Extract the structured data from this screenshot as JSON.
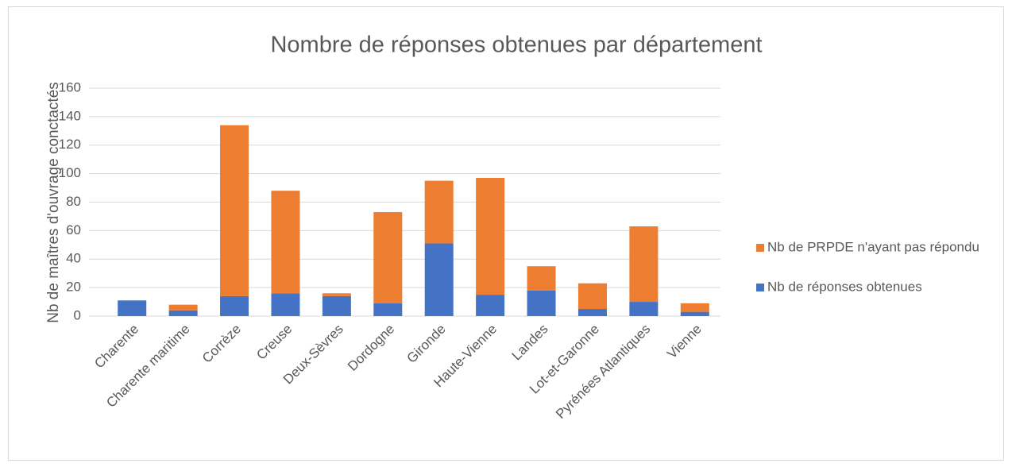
{
  "chart_data": {
    "type": "stacked_bar",
    "title": "Nombre de réponses obtenues par département",
    "y_label": "Nb de maîtres d'ouvrage conctactés",
    "categories": [
      "Charente",
      "Charente maritime",
      "Corrèze",
      "Creuse",
      "Deux-Sèvres",
      "Dordogne",
      "Gironde",
      "Haute-Vienne",
      "Landes",
      "Lot-et-Garonne",
      "Pyrénées Atlantiques",
      "Vienne"
    ],
    "series": [
      {
        "name": "Nb de réponses obtenues",
        "color": "#4472c4",
        "values": [
          11,
          4,
          14,
          16,
          14,
          9,
          51,
          15,
          18,
          5,
          10,
          3
        ]
      },
      {
        "name": "Nb de PRPDE n'ayant pas répondu",
        "color": "#ed7d31",
        "values": [
          0,
          4,
          120,
          72,
          2,
          64,
          44,
          82,
          17,
          18,
          53,
          6
        ]
      }
    ],
    "ylim": [
      0,
      160
    ],
    "yticks": [
      0,
      20,
      40,
      60,
      80,
      100,
      120,
      140,
      160
    ],
    "grid": true,
    "legend": "right"
  }
}
